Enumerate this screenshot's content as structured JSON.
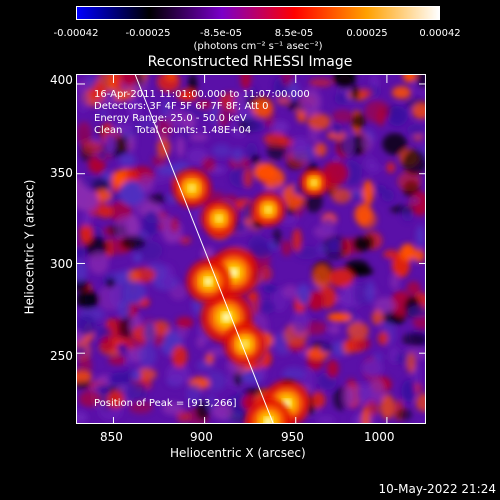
{
  "colorbar": {
    "ticks": [
      "-0.00042",
      "-0.00025",
      "-8.5e-05",
      "8.5e-05",
      "0.00025",
      "0.00042"
    ],
    "unit_label": "(photons cm⁻² s⁻¹ asec⁻²)",
    "colors": [
      "#0000ff",
      "#000000",
      "#7a00c8",
      "#ff0000",
      "#ffa000",
      "#ffffff"
    ]
  },
  "chart_data": {
    "type": "heatmap",
    "title": "Reconstructed RHESSI Image",
    "xlabel": "Heliocentric X (arcsec)",
    "ylabel": "Heliocentric Y (arcsec)",
    "xlim": [
      830,
      1022
    ],
    "ylim": [
      210,
      405
    ],
    "x_ticks": [
      850,
      900,
      950,
      1000
    ],
    "y_ticks": [
      250,
      300,
      350,
      400
    ],
    "peak_position": [
      913,
      266
    ],
    "limb_line": {
      "x_start": 862,
      "y_start": 405,
      "x_end": 938,
      "y_end": 210
    },
    "bright_regions": [
      {
        "x": 912,
        "y": 270,
        "intensity": 1.0
      },
      {
        "x": 916,
        "y": 295,
        "intensity": 0.95
      },
      {
        "x": 902,
        "y": 290,
        "intensity": 0.85
      },
      {
        "x": 922,
        "y": 255,
        "intensity": 0.8
      },
      {
        "x": 945,
        "y": 222,
        "intensity": 0.9
      },
      {
        "x": 935,
        "y": 212,
        "intensity": 0.9
      },
      {
        "x": 893,
        "y": 342,
        "intensity": 0.75
      },
      {
        "x": 908,
        "y": 325,
        "intensity": 0.7
      },
      {
        "x": 935,
        "y": 330,
        "intensity": 0.65
      },
      {
        "x": 960,
        "y": 345,
        "intensity": 0.55
      }
    ],
    "info_lines": [
      "16-Apr-2011 11:01:00.000 to 11:07:00.000",
      "Detectors: 3F 4F 5F 6F 7F 8F; Att 0",
      "Energy Range: 25.0 - 50.0 keV",
      "Clean    Total counts: 1.48E+04"
    ],
    "peak_label": "Position of Peak = [913,266]"
  },
  "footer": {
    "timestamp": "10-May-2022 21:24"
  }
}
